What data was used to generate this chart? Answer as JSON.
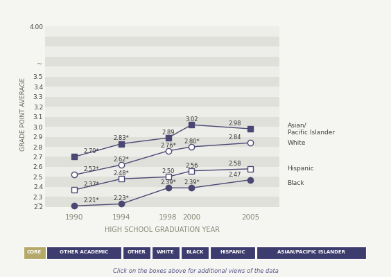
{
  "years": [
    1990,
    1994,
    1998,
    2000,
    2005
  ],
  "series_order": [
    "Asian/Pacific Islander",
    "White",
    "Hispanic",
    "Black"
  ],
  "series": {
    "Asian/Pacific Islander": {
      "values": [
        2.7,
        2.83,
        2.89,
        3.02,
        2.98
      ],
      "marker": "s",
      "marker_fill": "filled",
      "labels": [
        "2.70*",
        "2.83*",
        "2.89",
        "3.02",
        "2.98"
      ]
    },
    "White": {
      "values": [
        2.52,
        2.62,
        2.76,
        2.8,
        2.84
      ],
      "marker": "o",
      "marker_fill": "open",
      "labels": [
        "2.52*",
        "2.62*",
        "2.76*",
        "2.80*",
        "2.84"
      ]
    },
    "Hispanic": {
      "values": [
        2.37,
        2.48,
        2.5,
        2.56,
        2.58
      ],
      "marker": "s",
      "marker_fill": "open",
      "labels": [
        "2.37*",
        "2.48*",
        "2.50",
        "2.56",
        "2.58"
      ]
    },
    "Black": {
      "values": [
        2.21,
        2.23,
        2.39,
        2.39,
        2.47
      ],
      "marker": "o",
      "marker_fill": "filled",
      "labels": [
        "2.21*",
        "2.23*",
        "2.39*",
        "2.39*",
        "2.47"
      ]
    }
  },
  "ytick_labels": [
    "2.2",
    "~",
    "2.3",
    "2.4",
    "2.5",
    "2.6",
    "2.7",
    "2.8",
    "2.9",
    "3.0",
    "3.1",
    "3.2",
    "3.3",
    "3.4",
    "3.5",
    "~",
    "4.00"
  ],
  "ytick_values": [
    2.2,
    2.25,
    2.3,
    2.4,
    2.5,
    2.6,
    2.7,
    2.8,
    2.9,
    3.0,
    3.1,
    3.2,
    3.3,
    3.4,
    3.5,
    3.75,
    4.0
  ],
  "ylim": [
    2.15,
    4.1
  ],
  "xlabel": "HIGH SCHOOL GRADUATION YEAR",
  "ylabel": "GRADE POINT AVERAGE",
  "line_color": "#4a4873",
  "bg_light": "#ededea",
  "bg_dark": "#e0e0db",
  "figure_bg": "#f5f5f2",
  "bar_colors": [
    "#b5a96a",
    "#3d3c6e",
    "#3d3c6e",
    "#3d3c6e",
    "#3d3c6e",
    "#3d3c6e",
    "#3d3c6e"
  ],
  "bar_labels": [
    "CORE",
    "OTHER ACADEMIC",
    "OTHER",
    "WHITE",
    "BLACK",
    "HISPANIC",
    "ASIAN/PACIFIC ISLANDER"
  ],
  "footnote": "Click on the boxes above for additional views of the data",
  "legend_labels": [
    "Asian/\nPacific Islander",
    "White",
    "Hispanic",
    "Black"
  ]
}
